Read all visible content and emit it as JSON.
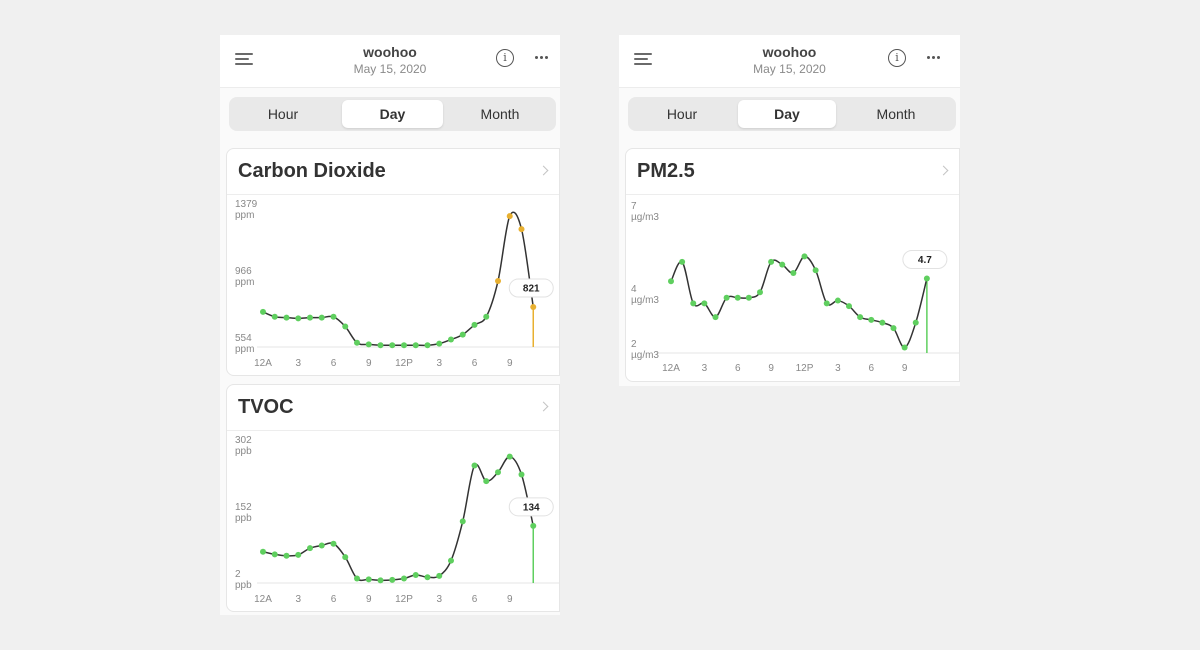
{
  "screens": [
    {
      "header": {
        "title": "woohoo",
        "date": "May 15, 2020"
      },
      "segments": [
        "Hour",
        "Day",
        "Month"
      ],
      "active_segment": "Day",
      "cards": [
        "Carbon Dioxide",
        "TVOC"
      ]
    },
    {
      "header": {
        "title": "woohoo",
        "date": "May 15, 2020"
      },
      "segments": [
        "Hour",
        "Day",
        "Month"
      ],
      "active_segment": "Day",
      "cards": [
        "PM2.5"
      ]
    }
  ],
  "colors": {
    "normal": "#5fcf5f",
    "elevated": "#e8b030",
    "line": "#333333"
  },
  "icons": [
    "menu-icon",
    "info-icon",
    "more-icon",
    "chevron-right-icon"
  ],
  "chart_data": [
    {
      "type": "line",
      "title": "Carbon Dioxide",
      "x_ticks": [
        "12A",
        "3",
        "6",
        "9",
        "12P",
        "3",
        "6",
        "9"
      ],
      "y_ticks": [
        {
          "value": 1379,
          "unit": "ppm"
        },
        {
          "value": 966,
          "unit": "ppm"
        },
        {
          "value": 554,
          "unit": "ppm"
        }
      ],
      "ylim": [
        554,
        1379
      ],
      "xlim": [
        0,
        24
      ],
      "hours": [
        0,
        1,
        2,
        3,
        4,
        5,
        6,
        7,
        8,
        9,
        10,
        11,
        12,
        13,
        14,
        15,
        16,
        17,
        18,
        19,
        20,
        21,
        22,
        23
      ],
      "values": [
        770,
        740,
        735,
        730,
        735,
        735,
        740,
        680,
        580,
        570,
        565,
        565,
        565,
        565,
        565,
        575,
        600,
        630,
        690,
        740,
        960,
        1360,
        1280,
        800
      ],
      "point_colors": [
        "normal",
        "normal",
        "normal",
        "normal",
        "normal",
        "normal",
        "normal",
        "normal",
        "normal",
        "normal",
        "normal",
        "normal",
        "normal",
        "normal",
        "normal",
        "normal",
        "normal",
        "normal",
        "normal",
        "normal",
        "elevated",
        "elevated",
        "elevated",
        "elevated"
      ],
      "current_value": "821"
    },
    {
      "type": "line",
      "title": "TVOC",
      "x_ticks": [
        "12A",
        "3",
        "6",
        "9",
        "12P",
        "3",
        "6",
        "9"
      ],
      "y_ticks": [
        {
          "value": 302,
          "unit": "ppb"
        },
        {
          "value": 152,
          "unit": "ppb"
        },
        {
          "value": 2,
          "unit": "ppb"
        }
      ],
      "ylim": [
        2,
        302
      ],
      "xlim": [
        0,
        24
      ],
      "hours": [
        0,
        1,
        2,
        3,
        4,
        5,
        6,
        7,
        8,
        9,
        10,
        11,
        12,
        13,
        14,
        15,
        16,
        17,
        18,
        19,
        20,
        21,
        22,
        23
      ],
      "values": [
        72,
        66,
        63,
        65,
        80,
        86,
        90,
        60,
        12,
        10,
        8,
        9,
        12,
        20,
        15,
        18,
        52,
        140,
        265,
        230,
        250,
        285,
        245,
        130
      ],
      "point_colors": [
        "normal",
        "normal",
        "normal",
        "normal",
        "normal",
        "normal",
        "normal",
        "normal",
        "normal",
        "normal",
        "normal",
        "normal",
        "normal",
        "normal",
        "normal",
        "normal",
        "normal",
        "normal",
        "normal",
        "normal",
        "normal",
        "normal",
        "normal",
        "normal"
      ],
      "current_value": "134"
    },
    {
      "type": "line",
      "title": "PM2.5",
      "x_ticks": [
        "12A",
        "3",
        "6",
        "9",
        "12P",
        "3",
        "6",
        "9"
      ],
      "y_ticks": [
        {
          "value": 7,
          "unit": "µg/m3"
        },
        {
          "value": 4,
          "unit": "µg/m3"
        },
        {
          "value": 2,
          "unit": "µg/m3"
        }
      ],
      "ylim": [
        2,
        7
      ],
      "xlim": [
        0,
        24
      ],
      "hours": [
        0,
        1,
        2,
        3,
        4,
        5,
        6,
        7,
        8,
        9,
        10,
        11,
        12,
        13,
        14,
        15,
        16,
        17,
        18,
        19,
        20,
        21,
        22,
        23
      ],
      "values": [
        4.6,
        5.3,
        3.8,
        3.8,
        3.3,
        4.0,
        4.0,
        4.0,
        4.2,
        5.3,
        5.2,
        4.9,
        5.5,
        5.0,
        3.8,
        3.9,
        3.7,
        3.3,
        3.2,
        3.1,
        2.9,
        2.2,
        3.1,
        4.7
      ],
      "point_colors": [
        "normal",
        "normal",
        "normal",
        "normal",
        "normal",
        "normal",
        "normal",
        "normal",
        "normal",
        "normal",
        "normal",
        "normal",
        "normal",
        "normal",
        "normal",
        "normal",
        "normal",
        "normal",
        "normal",
        "normal",
        "normal",
        "normal",
        "normal",
        "normal"
      ],
      "current_value": "4.7"
    }
  ]
}
